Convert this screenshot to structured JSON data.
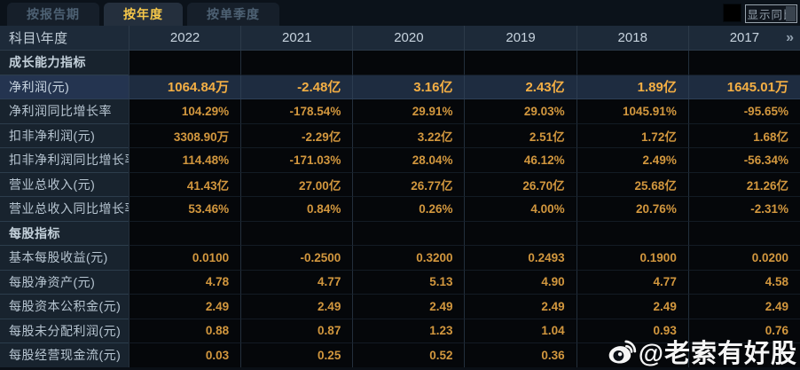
{
  "tabs": {
    "items": [
      {
        "label": "按报告期",
        "active": false
      },
      {
        "label": "按年度",
        "active": true
      },
      {
        "label": "按单季度",
        "active": false
      }
    ]
  },
  "controls": {
    "compare_label": "显示同比",
    "compare_checkbox_checked": false
  },
  "table": {
    "corner_label": "科目\\年度",
    "years": [
      "2022",
      "2021",
      "2020",
      "2019",
      "2018",
      "2017"
    ],
    "more_label": "»",
    "rows": [
      {
        "type": "section",
        "label": "成长能力指标",
        "values": [
          "",
          "",
          "",
          "",
          "",
          ""
        ]
      },
      {
        "type": "highlight",
        "label": "净利润(元)",
        "values": [
          "1064.84万",
          "-2.48亿",
          "3.16亿",
          "2.43亿",
          "1.89亿",
          "1645.01万"
        ]
      },
      {
        "type": "normal",
        "label": "净利润同比增长率",
        "values": [
          "104.29%",
          "-178.54%",
          "29.91%",
          "29.03%",
          "1045.91%",
          "-95.65%"
        ]
      },
      {
        "type": "normal",
        "label": "扣非净利润(元)",
        "values": [
          "3308.90万",
          "-2.29亿",
          "3.22亿",
          "2.51亿",
          "1.72亿",
          "1.68亿"
        ]
      },
      {
        "type": "normal",
        "label": "扣非净利润同比增长率",
        "values": [
          "114.48%",
          "-171.03%",
          "28.04%",
          "46.12%",
          "2.49%",
          "-56.34%"
        ]
      },
      {
        "type": "normal",
        "label": "营业总收入(元)",
        "values": [
          "41.43亿",
          "27.00亿",
          "26.77亿",
          "26.70亿",
          "25.68亿",
          "21.26亿"
        ]
      },
      {
        "type": "normal",
        "label": "营业总收入同比增长率",
        "values": [
          "53.46%",
          "0.84%",
          "0.26%",
          "4.00%",
          "20.76%",
          "-2.31%"
        ]
      },
      {
        "type": "section",
        "label": "每股指标",
        "values": [
          "",
          "",
          "",
          "",
          "",
          ""
        ]
      },
      {
        "type": "normal",
        "label": "基本每股收益(元)",
        "values": [
          "0.0100",
          "-0.2500",
          "0.3200",
          "0.2493",
          "0.1900",
          "0.0200"
        ]
      },
      {
        "type": "normal",
        "label": "每股净资产(元)",
        "values": [
          "4.78",
          "4.77",
          "5.13",
          "4.90",
          "4.77",
          "4.58"
        ]
      },
      {
        "type": "normal",
        "label": "每股资本公积金(元)",
        "values": [
          "2.49",
          "2.49",
          "2.49",
          "2.49",
          "2.49",
          "2.49"
        ]
      },
      {
        "type": "normal",
        "label": "每股未分配利润(元)",
        "values": [
          "0.88",
          "0.87",
          "1.23",
          "1.04",
          "0.93",
          "0.76"
        ]
      },
      {
        "type": "normal",
        "label": "每股经营现金流(元)",
        "values": [
          "0.03",
          "0.25",
          "0.52",
          "0.36",
          "",
          ""
        ]
      }
    ]
  },
  "watermark": {
    "icon": "weibo-icon",
    "text": "@老索有好股"
  },
  "colors": {
    "accent_yellow": "#f6c84a",
    "value_orange": "#d2973e",
    "highlight_value": "#f4af44",
    "highlight_row_bg": "#1e2c40",
    "label_column_bg": "#18232e",
    "header_row_bg": "#1d2a39",
    "page_bg": "#0a0f16"
  }
}
